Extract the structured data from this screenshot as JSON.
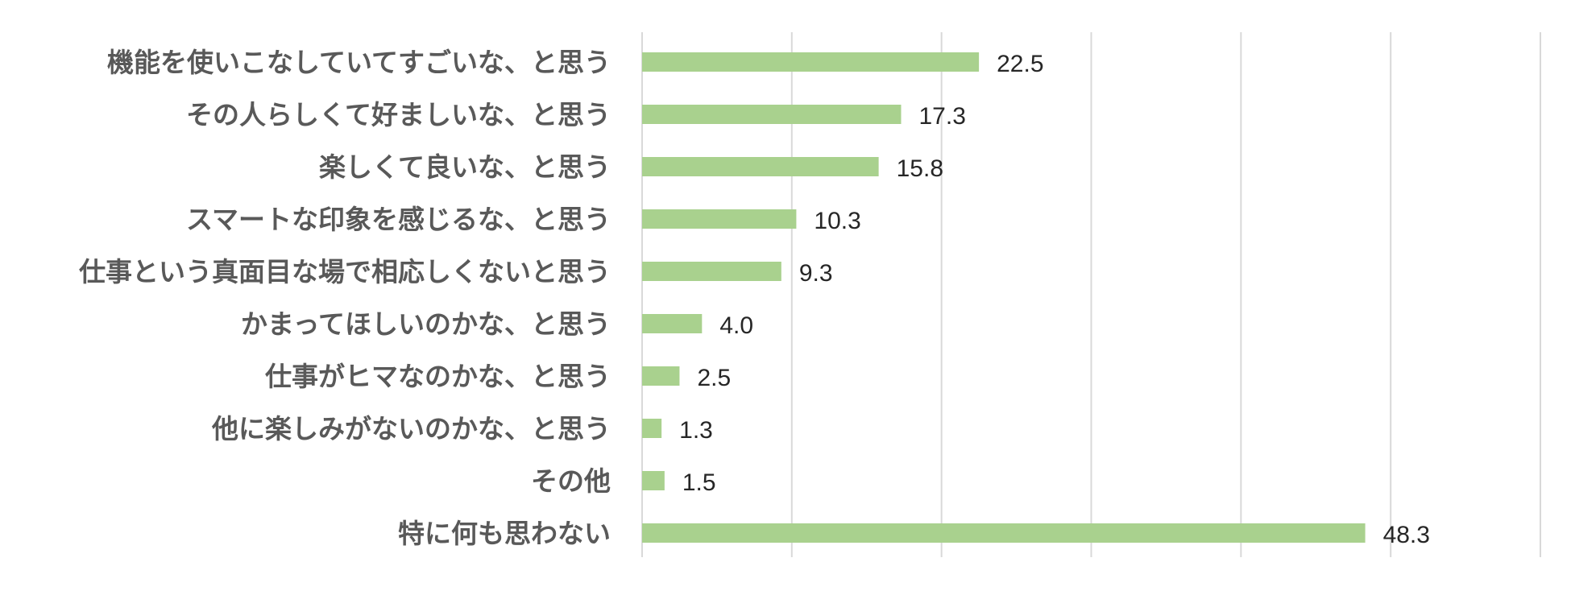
{
  "chart_data": {
    "type": "bar",
    "orientation": "horizontal",
    "categories": [
      "機能を使いこなしていてすごいな、と思う",
      "その人らしくて好ましいな、と思う",
      "楽しくて良いな、と思う",
      "スマートな印象を感じるな、と思う",
      "仕事という真面目な場で相応しくないと思う",
      "かまってほしいのかな、と思う",
      "仕事がヒマなのかな、と思う",
      "他に楽しみがないのかな、と思う",
      "その他",
      "特に何も思わない"
    ],
    "values": [
      22.5,
      17.3,
      15.8,
      10.3,
      9.3,
      4.0,
      2.5,
      1.3,
      1.5,
      48.3
    ],
    "value_labels": [
      "22.5",
      "17.3",
      "15.8",
      "10.3",
      "9.3",
      "4.0",
      "2.5",
      "1.3",
      "1.5",
      "48.3"
    ],
    "xlim": [
      0,
      60
    ],
    "grid_step": 10,
    "grid": true,
    "bar_color": "#a9d18e",
    "title": "",
    "xlabel": "",
    "ylabel": ""
  }
}
